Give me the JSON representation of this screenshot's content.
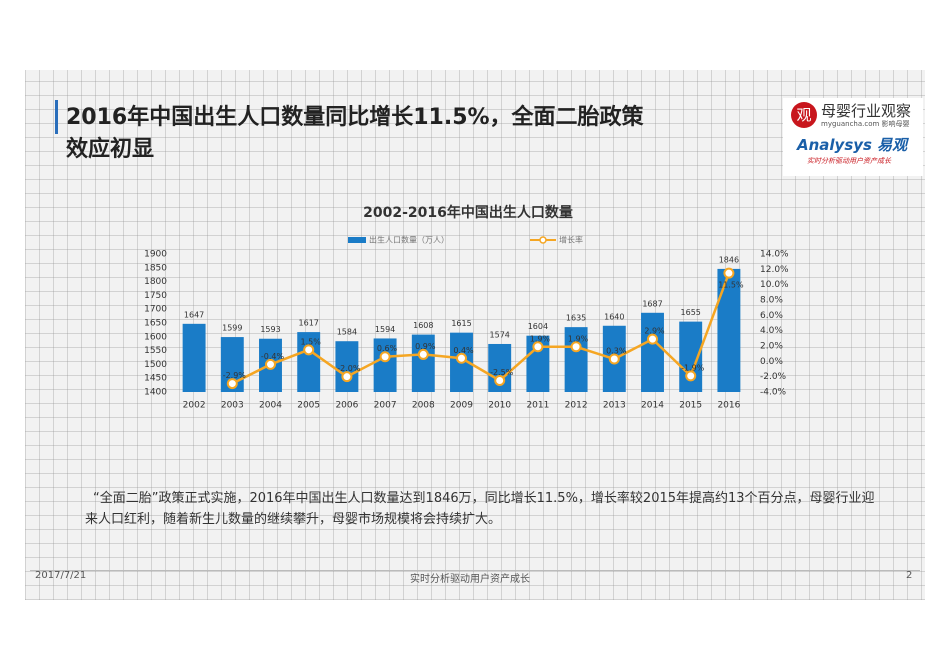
{
  "header": {
    "title_lines": [
      "2016年中国出生人口数量同比增长11.5%，全面二胎政策",
      "效应初显"
    ]
  },
  "logo": {
    "icon": "观",
    "name": "母婴行业观察",
    "site": "myguancha.com",
    "tagline": "影响母婴",
    "brand": "Analysys 易观",
    "slogan": "实时分析驱动用户资产成长"
  },
  "chart_data": {
    "type": "bar_line",
    "title": "2002-2016年中国出生人口数量",
    "categories": [
      "2002",
      "2003",
      "2004",
      "2005",
      "2006",
      "2007",
      "2008",
      "2009",
      "2010",
      "2011",
      "2012",
      "2013",
      "2014",
      "2015",
      "2016"
    ],
    "series": [
      {
        "name": "出生人口数量（万人）",
        "color": "#1a7cc7",
        "values": [
          1647,
          1599,
          1593,
          1617,
          1584,
          1594,
          1608,
          1615,
          1574,
          1604,
          1635,
          1640,
          1687,
          1655,
          1846
        ]
      },
      {
        "name": "增长率",
        "color": "#f5a623",
        "axis": "y2",
        "values": [
          null,
          -2.9,
          -0.4,
          1.5,
          -2.0,
          0.6,
          0.9,
          0.4,
          -2.5,
          1.9,
          1.9,
          0.3,
          2.9,
          -1.9,
          11.5
        ],
        "value_labels": [
          null,
          "-2.9%",
          "-0.4%",
          "1.5%",
          "-2.0%",
          "0.6%",
          "0.9%",
          "0.4%",
          "-2.5%",
          "1.9%",
          "1.9%",
          "0.3%",
          "2.9%",
          "-1.9%",
          "11.5%"
        ]
      }
    ],
    "ylim": [
      1400,
      1900
    ],
    "yticks": [
      1400,
      1450,
      1500,
      1550,
      1600,
      1650,
      1700,
      1750,
      1800,
      1850,
      1900
    ],
    "y2lim": [
      -4,
      14
    ],
    "y2ticks": [
      {
        "value": -4,
        "label": "-4.0%"
      },
      {
        "value": -2,
        "label": "-2.0%"
      },
      {
        "value": 0,
        "label": "0.0%"
      },
      {
        "value": 2,
        "label": "2.0%"
      },
      {
        "value": 4,
        "label": "4.0%"
      },
      {
        "value": 6,
        "label": "6.0%"
      },
      {
        "value": 8,
        "label": "8.0%"
      },
      {
        "value": 10,
        "label": "10.0%"
      },
      {
        "value": 12,
        "label": "12.0%"
      },
      {
        "value": 14,
        "label": "14.0%"
      }
    ]
  },
  "body": {
    "text": "“全面二胎”政策正式实施，2016年中国出生人口数量达到1846万，同比增长11.5%，增长率较2015年提高约13个百分点，母婴行业迎来人口红利，随着新生儿数量的继续攀升，母婴市场规模将会持续扩大。"
  },
  "footer": {
    "date": "2017/7/21",
    "center": "实时分析驱动用户资产成长",
    "page": "2"
  }
}
